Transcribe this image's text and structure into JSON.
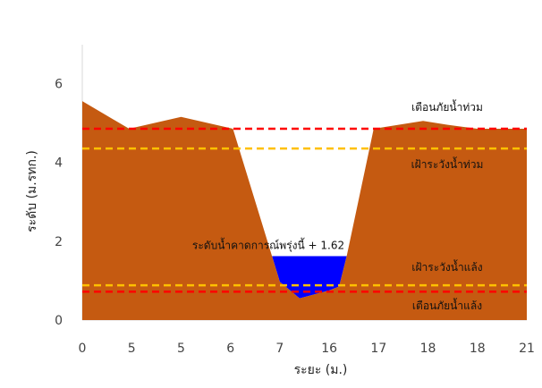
{
  "chart_data": {
    "type": "area",
    "xlabel": "ระยะ (ม.)",
    "ylabel": "ระดับ (ม.รทก.)",
    "ylim": [
      0,
      6.8
    ],
    "yticks": [
      0,
      2,
      4,
      6
    ],
    "grid": false,
    "x_tick_labels": [
      "0",
      "5",
      "5",
      "6",
      "7",
      "16",
      "17",
      "18",
      "18",
      "21"
    ],
    "profile": {
      "name": "ground",
      "color": "#C55A11",
      "points": [
        [
          0,
          5.55
        ],
        [
          0.95,
          4.85
        ],
        [
          2.0,
          5.15
        ],
        [
          3.05,
          4.85
        ],
        [
          3.7,
          2.2
        ],
        [
          4.0,
          0.97
        ],
        [
          4.4,
          0.55
        ],
        [
          5.0,
          0.75
        ],
        [
          5.2,
          0.85
        ],
        [
          5.35,
          1.6
        ],
        [
          5.9,
          4.85
        ],
        [
          6.9,
          5.05
        ],
        [
          7.4,
          4.95
        ],
        [
          8.0,
          4.85
        ],
        [
          9.0,
          4.85
        ]
      ]
    },
    "water": {
      "label": "ระดับน้ำคาดการณ์พรุ่งนี้ + 1.62",
      "level": 1.62,
      "color": "#0000FF"
    },
    "reference_lines": [
      {
        "label": "เตือนภัยน้ำท่วม",
        "value": 4.85,
        "color": "#FF0000"
      },
      {
        "label": "เฝ้าระวังน้ำท่วม",
        "value": 4.35,
        "color": "#FFC000"
      },
      {
        "label": "เฝ้าระวังน้ำแล้ง",
        "value": 0.88,
        "color": "#FFC000"
      },
      {
        "label": "เตือนภัยน้ำแล้ง",
        "value": 0.72,
        "color": "#FF0000"
      }
    ]
  }
}
